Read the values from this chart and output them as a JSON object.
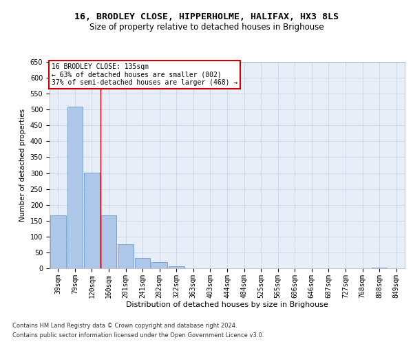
{
  "title1": "16, BRODLEY CLOSE, HIPPERHOLME, HALIFAX, HX3 8LS",
  "title2": "Size of property relative to detached houses in Brighouse",
  "xlabel": "Distribution of detached houses by size in Brighouse",
  "ylabel": "Number of detached properties",
  "categories": [
    "39sqm",
    "79sqm",
    "120sqm",
    "160sqm",
    "201sqm",
    "241sqm",
    "282sqm",
    "322sqm",
    "363sqm",
    "403sqm",
    "444sqm",
    "484sqm",
    "525sqm",
    "565sqm",
    "606sqm",
    "646sqm",
    "687sqm",
    "727sqm",
    "768sqm",
    "808sqm",
    "849sqm"
  ],
  "values": [
    167,
    510,
    302,
    167,
    76,
    32,
    20,
    6,
    1,
    0,
    0,
    0,
    0,
    0,
    0,
    0,
    0,
    0,
    0,
    3,
    0
  ],
  "bar_color": "#aec6e8",
  "bar_edge_color": "#5a8fc2",
  "vline_x": 2.5,
  "vline_color": "#cc0000",
  "annotation_text": "16 BRODLEY CLOSE: 135sqm\n← 63% of detached houses are smaller (802)\n37% of semi-detached houses are larger (468) →",
  "annotation_box_color": "#ffffff",
  "annotation_box_edge": "#cc0000",
  "ylim": [
    0,
    650
  ],
  "yticks": [
    0,
    50,
    100,
    150,
    200,
    250,
    300,
    350,
    400,
    450,
    500,
    550,
    600,
    650
  ],
  "footer1": "Contains HM Land Registry data © Crown copyright and database right 2024.",
  "footer2": "Contains public sector information licensed under the Open Government Licence v3.0.",
  "bg_color": "#e8eef8",
  "grid_color": "#c8d4e8",
  "title1_fontsize": 9.5,
  "title2_fontsize": 8.5,
  "xlabel_fontsize": 8,
  "ylabel_fontsize": 7.5,
  "tick_fontsize": 7,
  "ann_fontsize": 7,
  "footer_fontsize": 6
}
